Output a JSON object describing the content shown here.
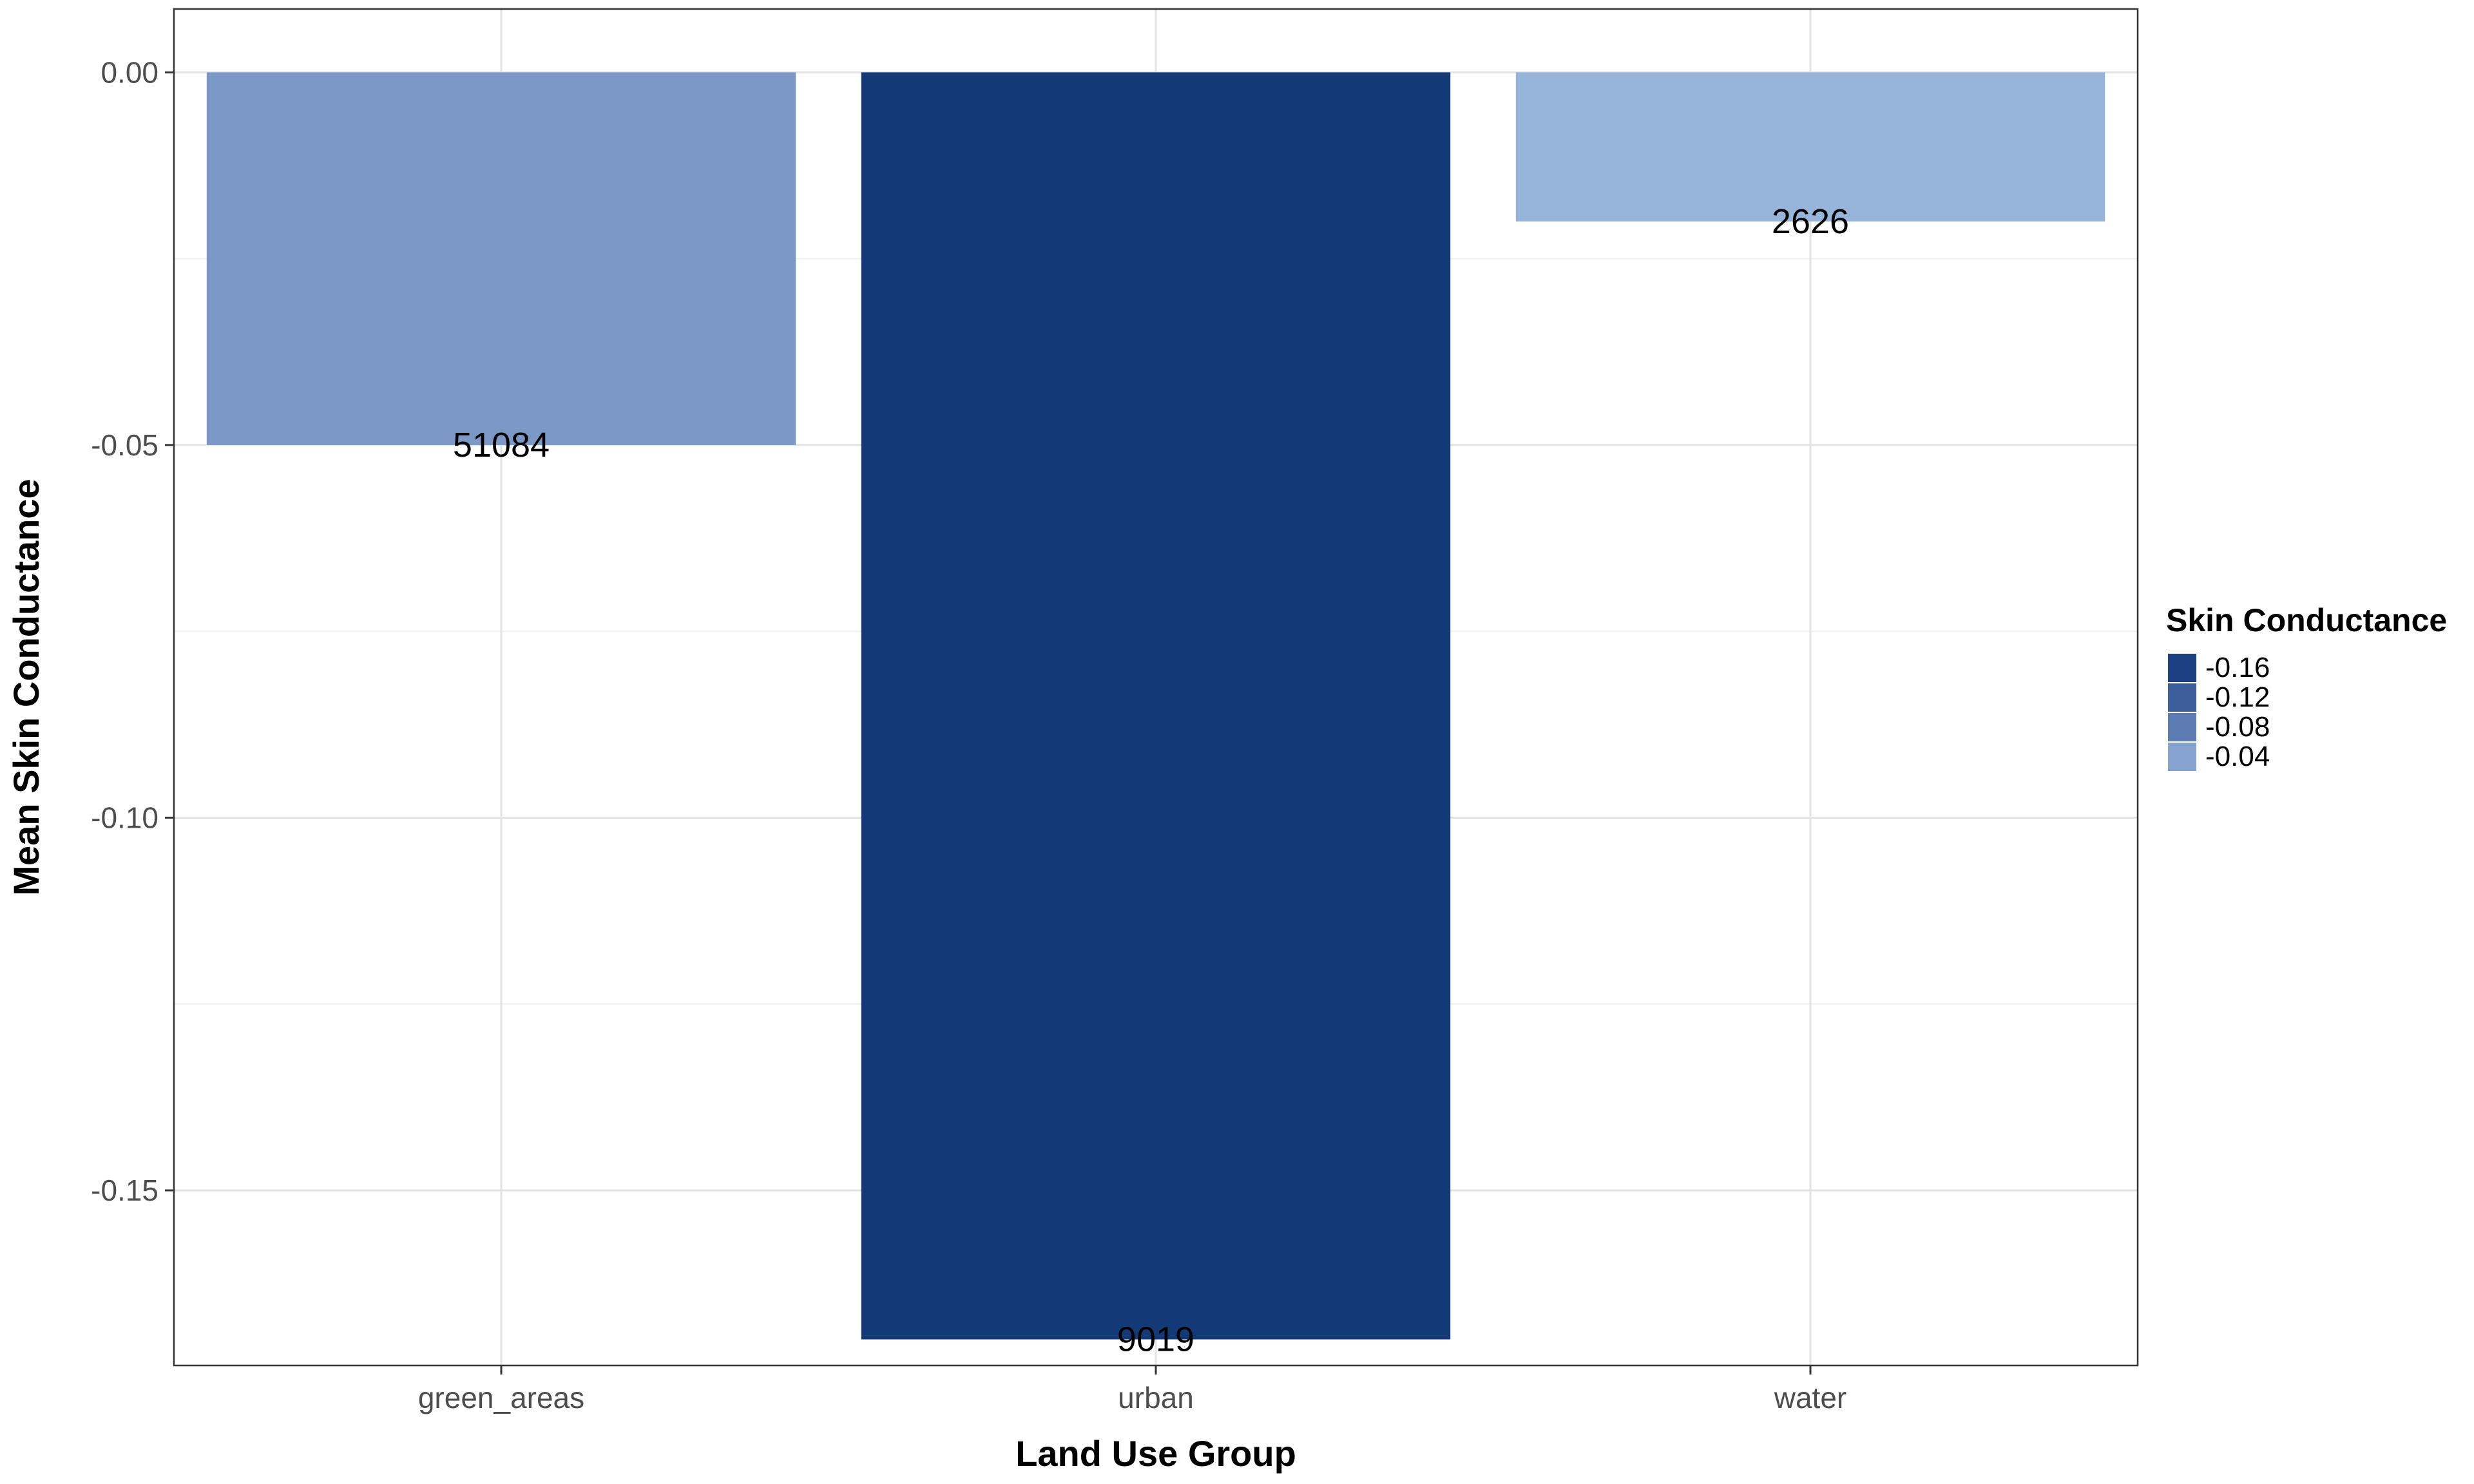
{
  "chart_data": {
    "type": "bar",
    "categories": [
      "green_areas",
      "urban",
      "water"
    ],
    "values": [
      -0.05,
      -0.17,
      -0.02
    ],
    "bar_labels": [
      "51084",
      "9019",
      "2626"
    ],
    "bar_colors": [
      "#7b98c6",
      "#133a77",
      "#97b4db"
    ],
    "xlabel": "Land Use Group",
    "ylabel": "Mean Skin Conductance",
    "ylim": [
      -0.1735,
      0.0085
    ],
    "yticks": [
      0.0,
      -0.05,
      -0.1,
      -0.15
    ],
    "ytick_labels": [
      "0.00",
      "-0.05",
      "-0.10",
      "-0.15"
    ],
    "grid": true,
    "legend": {
      "title": "Skin Conductance",
      "position": "right",
      "entries": [
        {
          "label": "-0.16",
          "color": "#1c3f82"
        },
        {
          "label": "-0.12",
          "color": "#3d5d9b"
        },
        {
          "label": "-0.08",
          "color": "#5d7cb3"
        },
        {
          "label": "-0.04",
          "color": "#86a3cf"
        }
      ]
    }
  }
}
